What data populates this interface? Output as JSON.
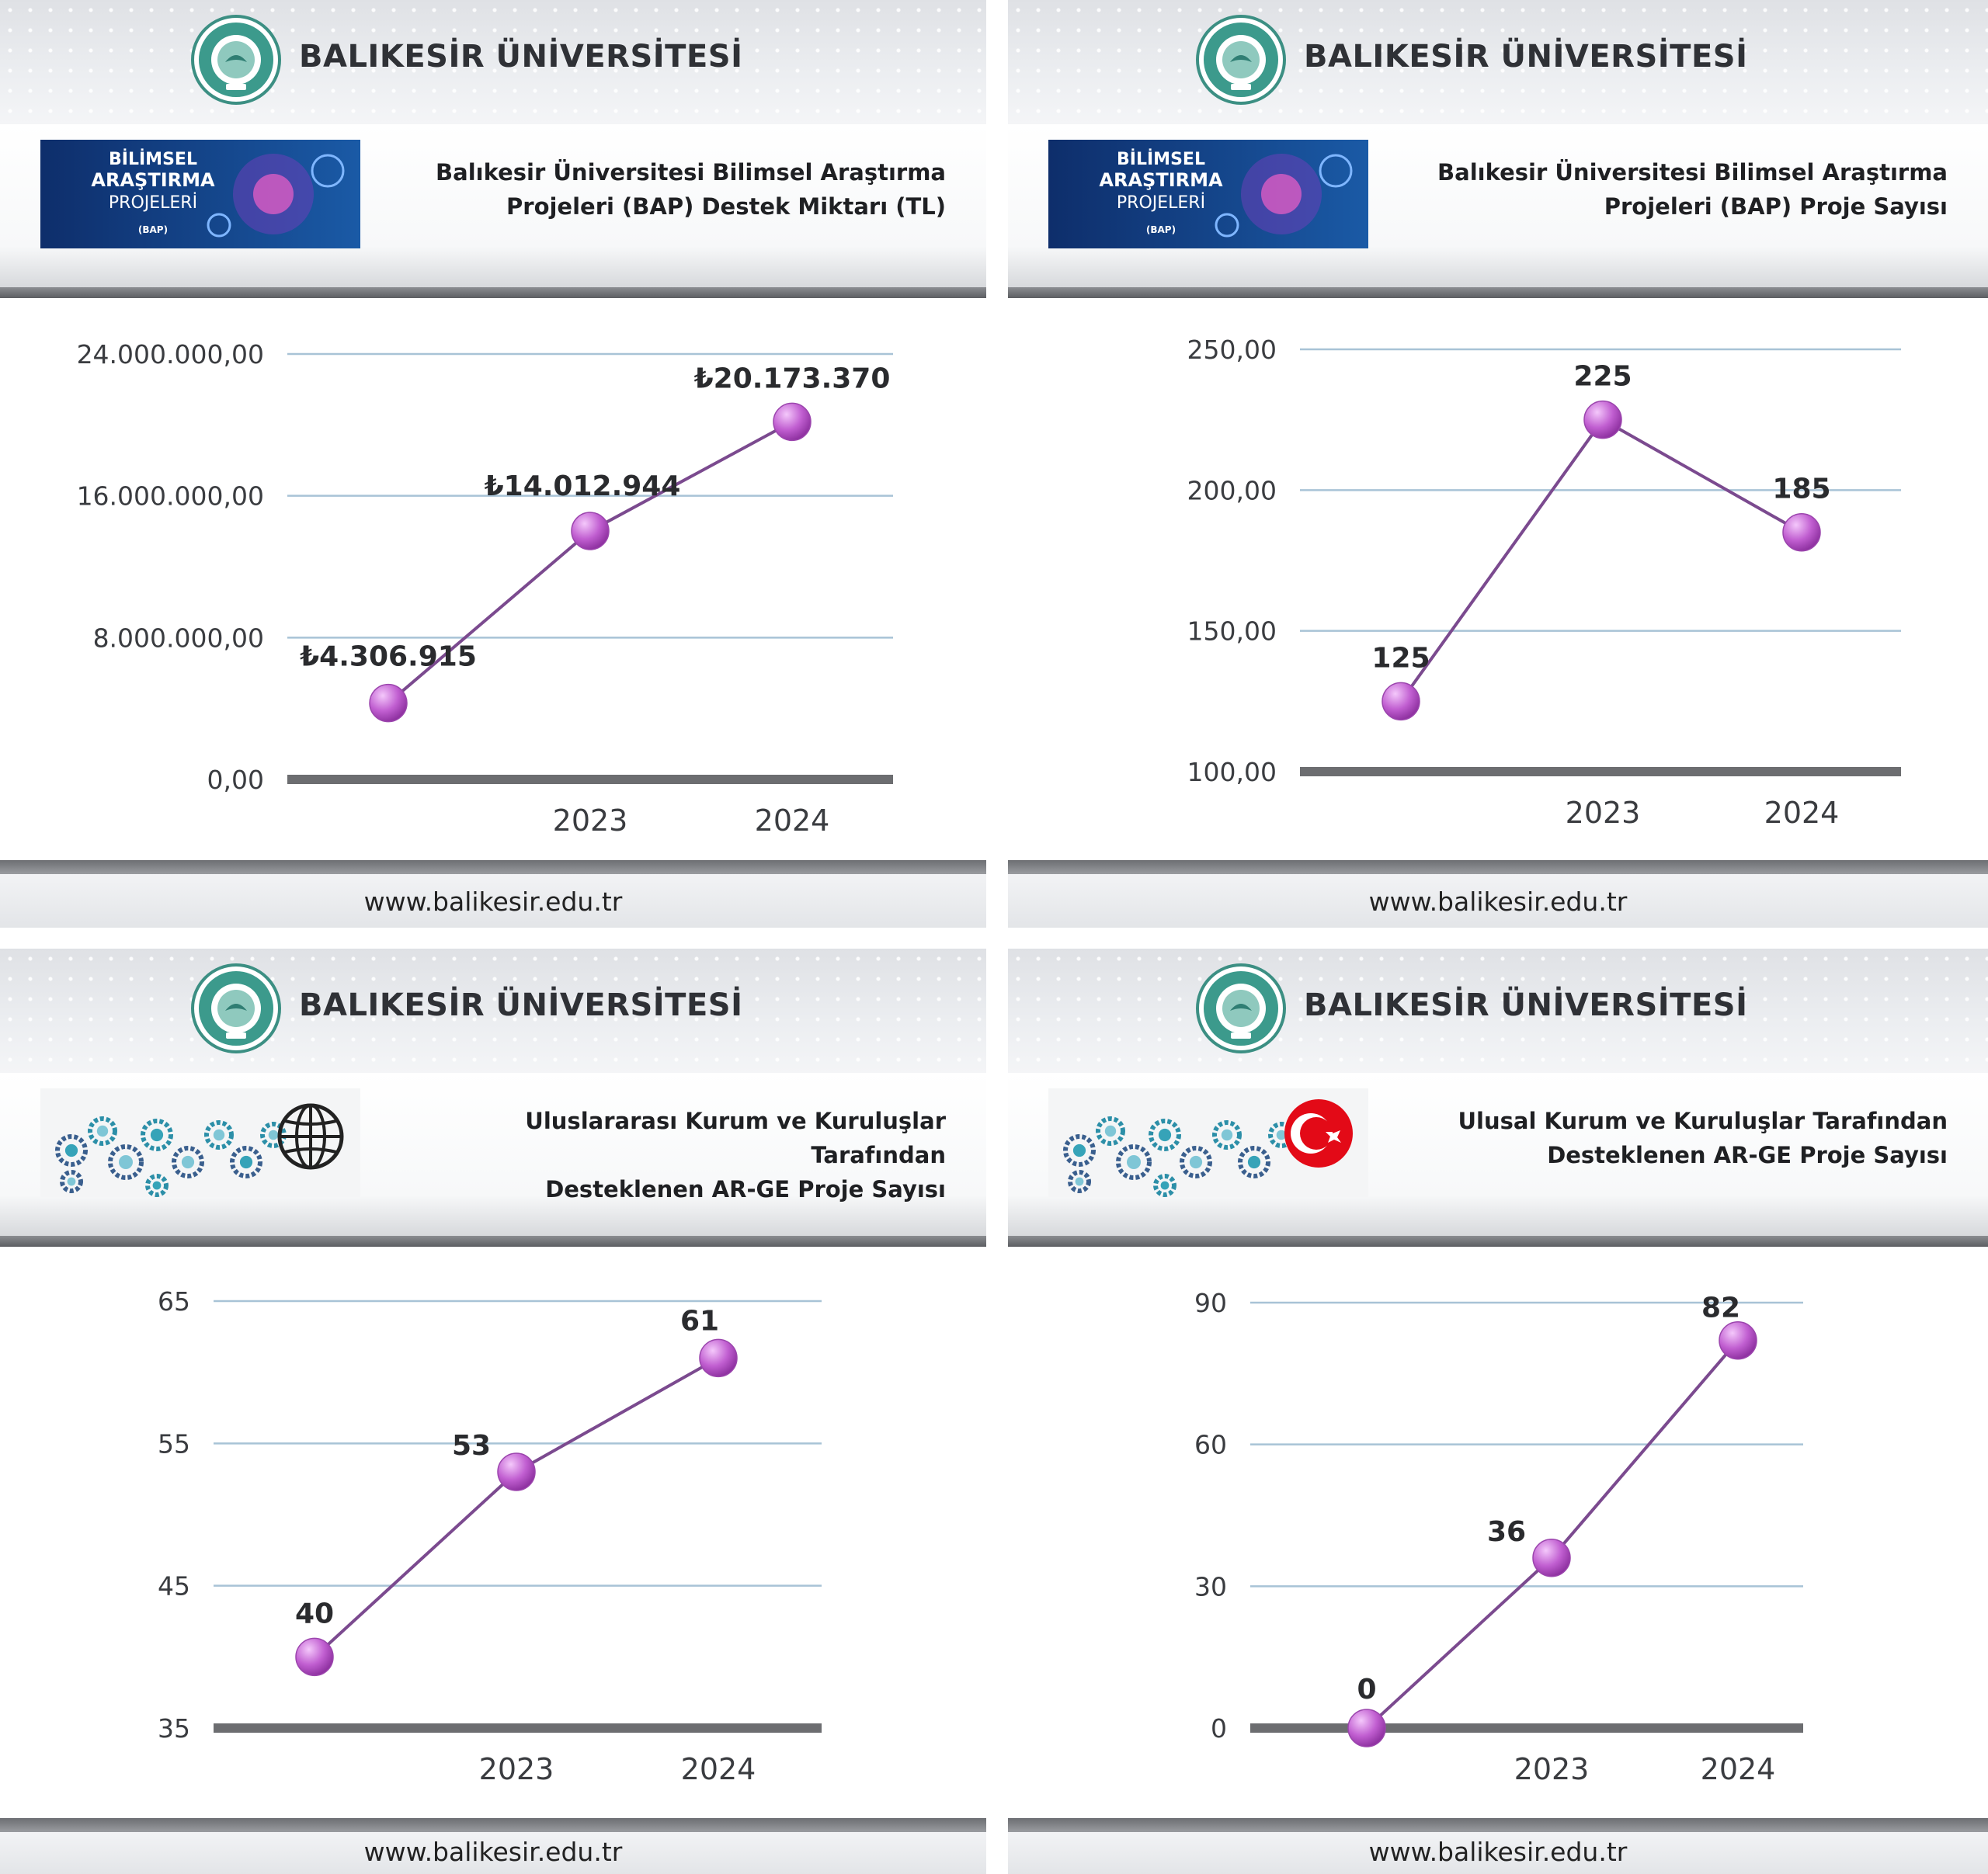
{
  "university": "BALIKESİR ÜNİVERSİTESİ",
  "website": "www.balikesir.edu.tr",
  "accent_color": "#7b4a8f",
  "marker_color": "#c15fd1",
  "panels": [
    {
      "id": "bap-funding",
      "subtitle_line1": "Balıkesir Üniversitesi Bilimsel Araştırma",
      "subtitle_line2": "Projeleri (BAP) Destek Miktarı (TL)",
      "image": "bap-brain",
      "image_text": [
        "BİLİMSEL",
        "ARAŞTIRMA",
        "PROJELERİ",
        "(BAP)"
      ]
    },
    {
      "id": "bap-count",
      "subtitle_line1": "Balıkesir Üniversitesi Bilimsel Araştırma",
      "subtitle_line2": "Projeleri (BAP) Proje Sayısı",
      "image": "bap-brain",
      "image_text": [
        "BİLİMSEL",
        "ARAŞTIRMA",
        "PROJELERİ",
        "(BAP)"
      ]
    },
    {
      "id": "intl-rd",
      "subtitle_line1": "Uluslararası Kurum ve Kuruluşlar Tarafından",
      "subtitle_line2": "Desteklenen AR-GE Proje Sayısı",
      "image": "gears-globe-icon"
    },
    {
      "id": "national-rd",
      "subtitle_line1": "Ulusal Kurum ve Kuruluşlar Tarafından",
      "subtitle_line2": "Desteklenen AR-GE Proje Sayısı",
      "image": "gears-turkish-flag-icon"
    }
  ],
  "chart_data": [
    {
      "type": "line",
      "title": "Balıkesir Üniversitesi Bilimsel Araştırma Projeleri (BAP) Destek Miktarı (TL)",
      "categories": [
        "",
        "2023",
        "2024"
      ],
      "values": [
        4306915,
        14012944,
        20173370
      ],
      "data_labels": [
        "₺4.306.915",
        "₺14.012.944",
        "₺20.173.370"
      ],
      "yticks": [
        "0,00",
        "8.000.000,00",
        "16.000.000,00",
        "24.000.000,00"
      ],
      "ylim": [
        0,
        24000000
      ],
      "grid": true
    },
    {
      "type": "line",
      "title": "Balıkesir Üniversitesi Bilimsel Araştırma Projeleri (BAP) Proje Sayısı",
      "categories": [
        "",
        "2023",
        "2024"
      ],
      "values": [
        125,
        225,
        185
      ],
      "data_labels": [
        "125",
        "225",
        "185"
      ],
      "yticks": [
        "100,00",
        "150,00",
        "200,00",
        "250,00"
      ],
      "ylim": [
        100,
        250
      ],
      "grid": true
    },
    {
      "type": "line",
      "title": "Uluslararası Kurum ve Kuruluşlar Tarafından Desteklenen AR-GE Proje Sayısı",
      "categories": [
        "",
        "2023",
        "2024"
      ],
      "values": [
        40,
        53,
        61
      ],
      "data_labels": [
        "40",
        "53",
        "61"
      ],
      "yticks": [
        "35",
        "45",
        "55",
        "65"
      ],
      "ylim": [
        35,
        65
      ],
      "grid": true
    },
    {
      "type": "line",
      "title": "Ulusal Kurum ve Kuruluşlar Tarafından Desteklenen AR-GE Proje Sayısı",
      "categories": [
        "",
        "2023",
        "2024"
      ],
      "values": [
        0,
        36,
        82
      ],
      "data_labels": [
        "0",
        "36",
        "82"
      ],
      "yticks": [
        "0",
        "30",
        "60",
        "90"
      ],
      "ylim": [
        0,
        90
      ],
      "grid": true
    }
  ]
}
